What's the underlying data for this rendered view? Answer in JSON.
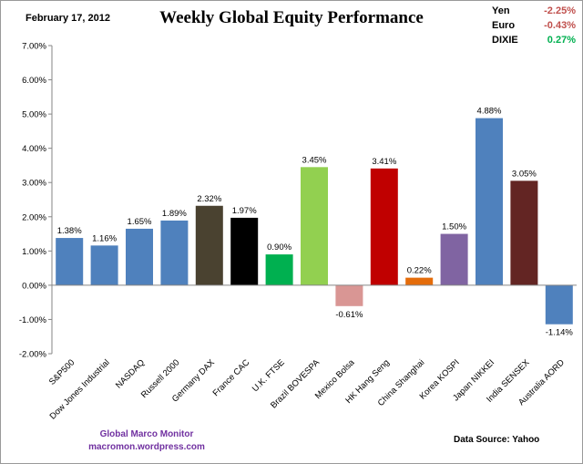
{
  "header": {
    "date": "February 17, 2012"
  },
  "currencies": [
    {
      "label": "Yen",
      "value": "-2.25%",
      "color": "#c0504d"
    },
    {
      "label": "Euro",
      "value": "-0.43%",
      "color": "#c0504d"
    },
    {
      "label": "DIXIE",
      "value": "0.27%",
      "color": "#00b050"
    }
  ],
  "footer": {
    "credit_line1": "Global Marco Monitor",
    "credit_line2": "macromon.wordpress.com",
    "source": "Data Source:   Yahoo"
  },
  "chart_data": {
    "type": "bar",
    "title": "Weekly Global Equity Performance",
    "xlabel": "",
    "ylabel": "",
    "ylim": [
      -2,
      7
    ],
    "yticks": [
      "-2.00%",
      "-1.00%",
      "0.00%",
      "1.00%",
      "2.00%",
      "3.00%",
      "4.00%",
      "5.00%",
      "6.00%",
      "7.00%"
    ],
    "grid": false,
    "categories": [
      "S&P500",
      "Dow Jones Industrial",
      "NASDAQ",
      "Russell 2000",
      "Germany DAX",
      "France CAC",
      "U.K. FTSE",
      "Brazil BOVESPA",
      "Mexico Bolsa",
      "HK Hang Seng",
      "China Shanghai",
      "Korea KOSPI",
      "Japan NIKKEI",
      "India SENSEX",
      "Australia AORD"
    ],
    "values": [
      1.38,
      1.16,
      1.65,
      1.89,
      2.32,
      1.97,
      0.9,
      3.45,
      -0.61,
      3.41,
      0.22,
      1.5,
      4.88,
      3.05,
      -1.14
    ],
    "data_labels": [
      "1.38%",
      "1.16%",
      "1.65%",
      "1.89%",
      "2.32%",
      "1.97%",
      "0.90%",
      "3.45%",
      "-0.61%",
      "3.41%",
      "0.22%",
      "1.50%",
      "4.88%",
      "3.05%",
      "-1.14%"
    ],
    "colors": [
      "#4f81bd",
      "#4f81bd",
      "#4f81bd",
      "#4f81bd",
      "#4a4230",
      "#000000",
      "#00b050",
      "#92d050",
      "#d99694",
      "#c00000",
      "#e46c0a",
      "#8064a2",
      "#4f81bd",
      "#632523",
      "#4f81bd"
    ]
  }
}
